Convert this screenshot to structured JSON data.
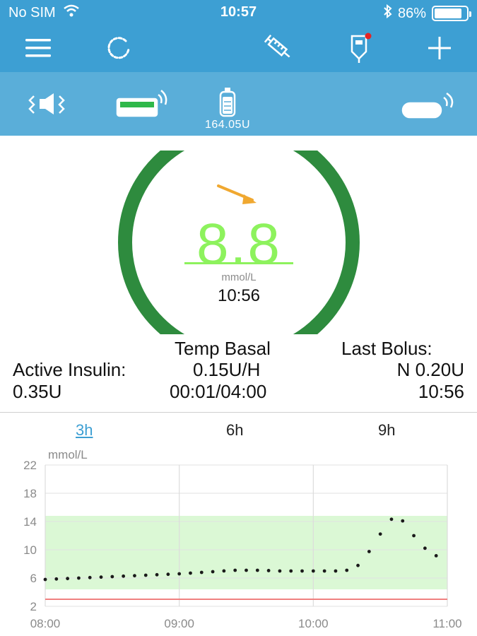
{
  "status_bar": {
    "carrier": "No SIM",
    "time": "10:57",
    "battery": "86%",
    "battery_level": 0.86,
    "icons": [
      "wifi-icon",
      "bluetooth-icon",
      "battery-icon"
    ]
  },
  "nav_bar": {
    "icons": [
      "menu-icon",
      "refresh-icon",
      "syringe-icon",
      "glucose-meter-icon",
      "add-icon"
    ]
  },
  "device_bar": {
    "icons": [
      "pump-speaker-icon",
      "pump-connected-icon",
      "insulin-reservoir-icon",
      "cgm-sensor-icon"
    ],
    "reservoir_units": "164.05U"
  },
  "glucose": {
    "value": "8.8",
    "unit": "mmol/L",
    "time": "10:56",
    "trend": "trend-arrow-down-right-icon",
    "ring_color": "#2e8b3e",
    "value_color": "#8df25d",
    "trend_color": "#f0a830"
  },
  "info": {
    "temp_basal_label": "Temp Basal",
    "temp_basal_rate": "0.15U/H",
    "temp_basal_duration": "00:01/04:00",
    "active_insulin_label": "Active Insulin:",
    "active_insulin_value": "0.35U",
    "last_bolus_label": "Last Bolus:",
    "last_bolus_value": "N 0.20U",
    "last_bolus_time": "10:56"
  },
  "range_tabs": [
    {
      "label": "3h",
      "active": true
    },
    {
      "label": "6h",
      "active": false
    },
    {
      "label": "9h",
      "active": false
    }
  ],
  "chart_data": {
    "type": "scatter",
    "ylabel": "mmol/L",
    "ylim": [
      2,
      22
    ],
    "y_ticks": [
      "22",
      "18",
      "14",
      "10",
      "6",
      "2"
    ],
    "y_tick_values": [
      22,
      18,
      14,
      10,
      6,
      2
    ],
    "x_ticks": [
      "08:00",
      "09:00",
      "10:00",
      "11:00"
    ],
    "x_range_hours": [
      8,
      11
    ],
    "target_range": [
      4.4,
      14.8
    ],
    "low_threshold": 3.0,
    "target_color": "#dbf8d5",
    "low_line_color": "#f08080",
    "point_color": "#1a1a1a",
    "anchors": [
      [
        8.0,
        5.8
      ],
      [
        8.25,
        6.0
      ],
      [
        8.5,
        6.2
      ],
      [
        8.75,
        6.4
      ],
      [
        9.0,
        6.6
      ],
      [
        9.25,
        6.9
      ],
      [
        9.4,
        7.1
      ],
      [
        9.6,
        7.1
      ],
      [
        9.75,
        7.0
      ],
      [
        10.0,
        7.0
      ],
      [
        10.2,
        7.0
      ],
      [
        10.3,
        7.2
      ],
      [
        10.38,
        8.6
      ],
      [
        10.45,
        10.8
      ],
      [
        10.52,
        12.8
      ],
      [
        10.58,
        14.3
      ],
      [
        10.63,
        14.6
      ],
      [
        10.68,
        13.9
      ],
      [
        10.75,
        12.0
      ],
      [
        10.82,
        10.4
      ],
      [
        10.9,
        9.3
      ],
      [
        10.96,
        8.8
      ]
    ]
  }
}
